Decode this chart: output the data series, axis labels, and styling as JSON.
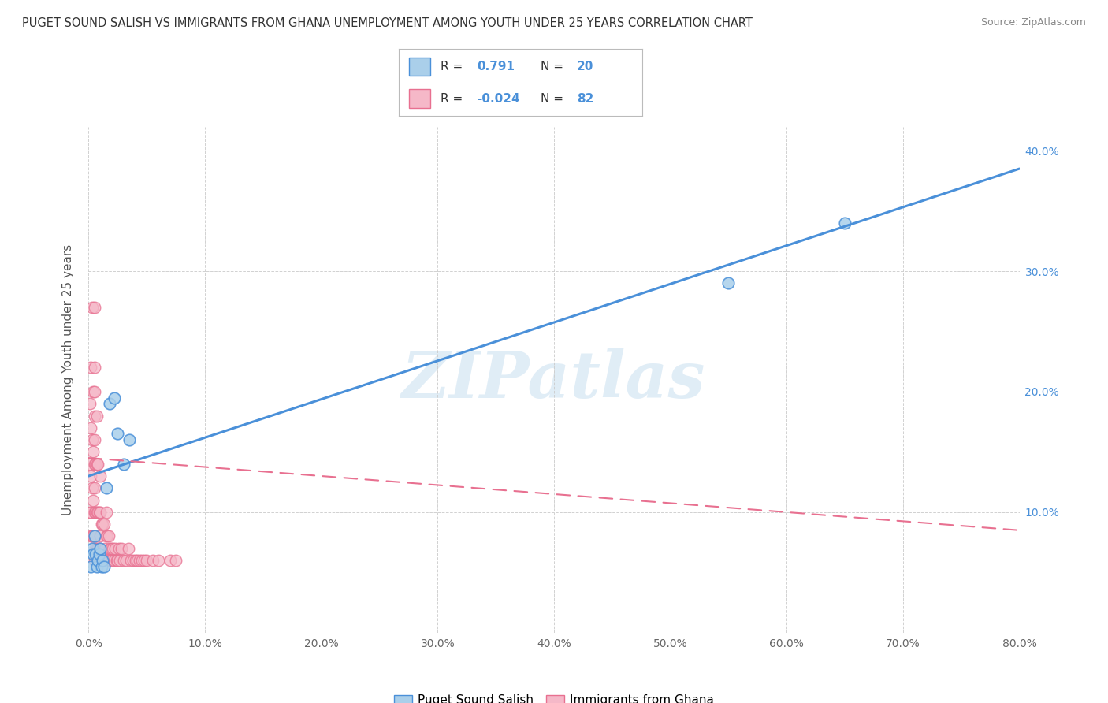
{
  "title": "PUGET SOUND SALISH VS IMMIGRANTS FROM GHANA UNEMPLOYMENT AMONG YOUTH UNDER 25 YEARS CORRELATION CHART",
  "source": "Source: ZipAtlas.com",
  "ylabel": "Unemployment Among Youth under 25 years",
  "legend_label1": "Puget Sound Salish",
  "legend_label2": "Immigrants from Ghana",
  "r1": 0.791,
  "n1": 20,
  "r2": -0.024,
  "n2": 82,
  "color1": "#aacfea",
  "color2": "#f5b8c8",
  "line1_color": "#4a90d9",
  "line2_color": "#e87090",
  "bg_color": "#ffffff",
  "grid_color": "#cccccc",
  "xmin": 0.0,
  "xmax": 0.8,
  "ymin": 0.0,
  "ymax": 0.42,
  "xticks": [
    0.0,
    0.1,
    0.2,
    0.3,
    0.4,
    0.5,
    0.6,
    0.7,
    0.8
  ],
  "yticks": [
    0.0,
    0.1,
    0.2,
    0.3,
    0.4
  ],
  "xtick_labels": [
    "0.0%",
    "10.0%",
    "20.0%",
    "30.0%",
    "40.0%",
    "50.0%",
    "60.0%",
    "70.0%",
    "80.0%"
  ],
  "right_ytick_labels": [
    "",
    "10.0%",
    "20.0%",
    "30.0%",
    "40.0%"
  ],
  "watermark": "ZIPatlas",
  "blue_line_x0": 0.0,
  "blue_line_y0": 0.13,
  "blue_line_x1": 0.8,
  "blue_line_y1": 0.385,
  "pink_line_x0": 0.0,
  "pink_line_y0": 0.145,
  "pink_line_x1": 0.8,
  "pink_line_y1": 0.085,
  "blue_scatter_x": [
    0.002,
    0.003,
    0.004,
    0.005,
    0.006,
    0.007,
    0.008,
    0.009,
    0.01,
    0.011,
    0.012,
    0.013,
    0.015,
    0.018,
    0.022,
    0.025,
    0.55,
    0.65,
    0.03,
    0.035
  ],
  "blue_scatter_y": [
    0.055,
    0.07,
    0.065,
    0.08,
    0.065,
    0.055,
    0.06,
    0.065,
    0.07,
    0.055,
    0.06,
    0.055,
    0.12,
    0.19,
    0.195,
    0.165,
    0.29,
    0.34,
    0.14,
    0.16
  ],
  "pink_scatter_x": [
    0.001,
    0.001,
    0.001,
    0.002,
    0.002,
    0.002,
    0.002,
    0.002,
    0.003,
    0.003,
    0.003,
    0.003,
    0.004,
    0.004,
    0.004,
    0.004,
    0.005,
    0.005,
    0.005,
    0.005,
    0.005,
    0.005,
    0.005,
    0.005,
    0.005,
    0.005,
    0.006,
    0.006,
    0.006,
    0.007,
    0.007,
    0.007,
    0.007,
    0.008,
    0.008,
    0.008,
    0.009,
    0.009,
    0.01,
    0.01,
    0.01,
    0.01,
    0.011,
    0.011,
    0.012,
    0.012,
    0.013,
    0.013,
    0.014,
    0.015,
    0.015,
    0.015,
    0.016,
    0.016,
    0.017,
    0.017,
    0.018,
    0.019,
    0.02,
    0.021,
    0.022,
    0.023,
    0.024,
    0.025,
    0.026,
    0.027,
    0.028,
    0.03,
    0.032,
    0.034,
    0.036,
    0.038,
    0.04,
    0.042,
    0.044,
    0.046,
    0.048,
    0.05,
    0.055,
    0.06,
    0.07,
    0.075
  ],
  "pink_scatter_y": [
    0.1,
    0.14,
    0.19,
    0.08,
    0.1,
    0.13,
    0.17,
    0.22,
    0.08,
    0.12,
    0.16,
    0.27,
    0.08,
    0.11,
    0.15,
    0.2,
    0.06,
    0.08,
    0.1,
    0.12,
    0.14,
    0.16,
    0.18,
    0.2,
    0.22,
    0.27,
    0.07,
    0.1,
    0.14,
    0.07,
    0.1,
    0.14,
    0.18,
    0.07,
    0.1,
    0.14,
    0.07,
    0.1,
    0.06,
    0.08,
    0.1,
    0.13,
    0.06,
    0.09,
    0.06,
    0.09,
    0.06,
    0.09,
    0.07,
    0.06,
    0.08,
    0.1,
    0.06,
    0.08,
    0.06,
    0.08,
    0.07,
    0.07,
    0.06,
    0.07,
    0.06,
    0.07,
    0.06,
    0.06,
    0.07,
    0.06,
    0.07,
    0.06,
    0.06,
    0.07,
    0.06,
    0.06,
    0.06,
    0.06,
    0.06,
    0.06,
    0.06,
    0.06,
    0.06,
    0.06,
    0.06,
    0.06
  ]
}
